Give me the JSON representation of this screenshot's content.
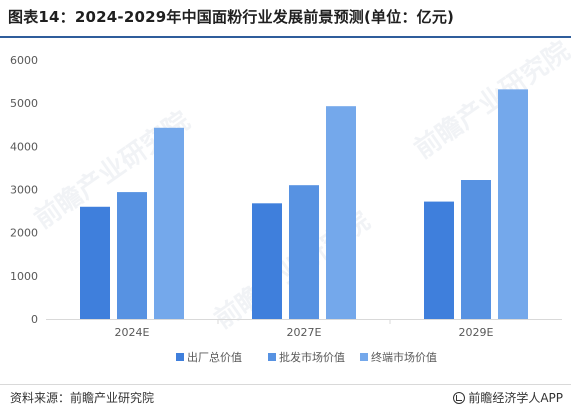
{
  "title": "图表14：2024-2029年中国面粉行业发展前景预测(单位：亿元)",
  "source": "资料来源：前瞻产业研究院",
  "brand": "前瞻经济学人APP",
  "watermark": "前瞻产业研究院",
  "colors": {
    "series": [
      "#3f7fdc",
      "#5792e2",
      "#74a8eb"
    ],
    "axis": "#d9d9d9",
    "rule": "#2f5d9b"
  },
  "chart_data": {
    "type": "bar",
    "categories": [
      "2024E",
      "2027E",
      "2029E"
    ],
    "series": [
      {
        "name": "出厂总价值",
        "values": [
          2600,
          2680,
          2720
        ]
      },
      {
        "name": "批发市场价值",
        "values": [
          2940,
          3100,
          3220
        ]
      },
      {
        "name": "终端市场价值",
        "values": [
          4430,
          4930,
          5320
        ]
      }
    ],
    "ylim": [
      0,
      6000
    ],
    "yticks": [
      "0",
      "1000",
      "2000",
      "3000",
      "4000",
      "5000",
      "6000"
    ],
    "grid": false,
    "legend": "bottom"
  }
}
